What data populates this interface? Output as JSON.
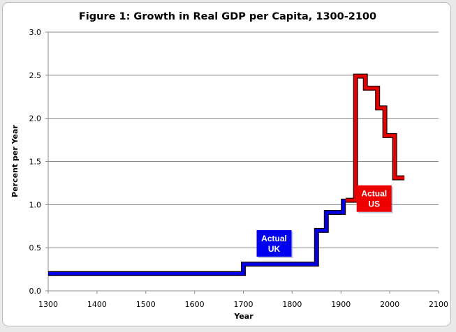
{
  "chart_data": {
    "type": "line",
    "title": "Figure 1: Growth in Real GDP per Capita, 1300-2100",
    "xlabel": "Year",
    "ylabel": "Percent per Year",
    "xlim": [
      1300,
      2100
    ],
    "ylim": [
      0.0,
      3.0
    ],
    "x_ticks": [
      "1300",
      "1400",
      "1500",
      "1600",
      "1700",
      "1800",
      "1900",
      "2000",
      "2100"
    ],
    "y_ticks": [
      "0.0",
      "0.5",
      "1.0",
      "1.5",
      "2.0",
      "2.5",
      "3.0"
    ],
    "grid": "horizontal",
    "series": [
      {
        "name": "Actual UK",
        "color": "#0000e6",
        "step": true,
        "x": [
          1300,
          1700,
          1700,
          1850,
          1850,
          1870,
          1870,
          1905,
          1905,
          1910
        ],
        "y": [
          0.2,
          0.2,
          0.31,
          0.31,
          0.7,
          0.7,
          0.91,
          0.91,
          1.04,
          1.04
        ]
      },
      {
        "name": "Actual US",
        "color": "#e60000",
        "step": true,
        "x": [
          1910,
          1930,
          1930,
          1950,
          1950,
          1975,
          1975,
          1990,
          1990,
          2010,
          2010,
          2030
        ],
        "y": [
          1.05,
          1.05,
          2.49,
          2.49,
          2.35,
          2.35,
          2.12,
          2.12,
          1.8,
          1.8,
          1.31,
          1.31
        ]
      }
    ],
    "annotations": [
      {
        "series": 0,
        "line1": "Actual",
        "line2": "UK",
        "color": "#0000f0",
        "x": 1763,
        "y": 0.55
      },
      {
        "series": 1,
        "line1": "Actual",
        "line2": "US",
        "color": "#ee0000",
        "x": 1968,
        "y": 1.07
      }
    ]
  }
}
